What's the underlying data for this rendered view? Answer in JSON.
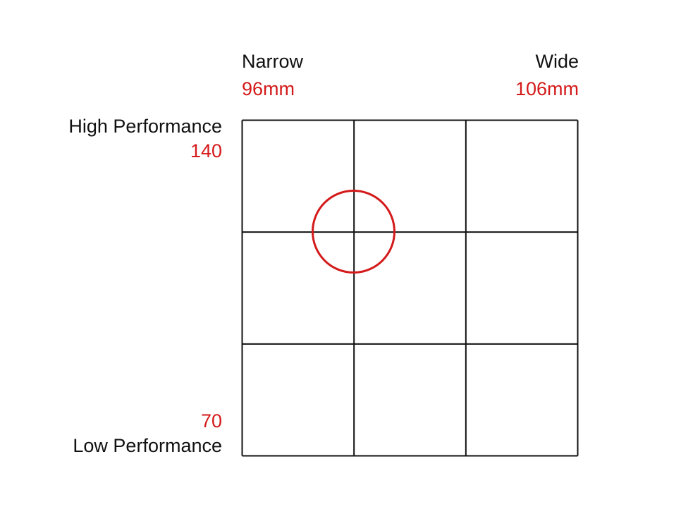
{
  "top_labels": {
    "left": {
      "name": "Narrow",
      "value": "96mm"
    },
    "right": {
      "name": "Wide",
      "value": "106mm"
    }
  },
  "side_labels": {
    "top": {
      "name": "High Performance",
      "value": "140"
    },
    "bottom": {
      "name": "Low Performance",
      "value": "70"
    }
  },
  "colors": {
    "grid": "#111111",
    "accent": "#d41a1a"
  },
  "grid": {
    "rows": 3,
    "cols": 3
  }
}
